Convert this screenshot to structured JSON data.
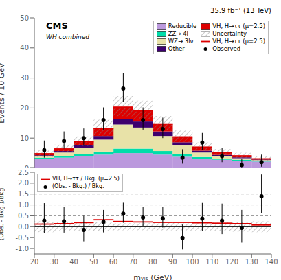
{
  "chart_data": [
    {
      "type": "bar",
      "stacked": true,
      "ylabel": "Events / 10 GeV",
      "annotations": [
        "CMS",
        "WH combined",
        "35.9 fb⁻¹ (13 TeV)"
      ],
      "x": [
        25,
        35,
        45,
        55,
        65,
        75,
        85,
        95,
        105,
        115,
        125,
        135
      ],
      "xlim": [
        20,
        140
      ],
      "xticks": [
        20,
        30,
        40,
        50,
        60,
        70,
        80,
        90,
        100,
        110,
        120,
        130,
        140
      ],
      "tick_labels": "y",
      "ylim": [
        0,
        50
      ],
      "yticks": [
        0,
        10,
        20,
        30,
        40,
        50
      ],
      "legend": "upper right",
      "series": [
        {
          "name": "Reducible",
          "type": "bar",
          "color": "#bb99dd",
          "values": [
            3.2,
            3.5,
            4.0,
            4.5,
            5.0,
            5.0,
            4.5,
            3.8,
            3.2,
            2.8,
            2.5,
            2.2
          ]
        },
        {
          "name": "ZZ→ 4l",
          "type": "bar",
          "color": "#00ddaa",
          "values": [
            0.3,
            0.5,
            0.8,
            1.0,
            1.5,
            1.5,
            1.2,
            0.8,
            0.5,
            0.4,
            0.3,
            0.2
          ]
        },
        {
          "name": "WZ→ 3lν",
          "type": "bar",
          "color": "#e8e2a8",
          "values": [
            0.5,
            1.2,
            2.0,
            4.0,
            8.0,
            7.0,
            5.0,
            3.0,
            1.5,
            0.8,
            0.5,
            0.3
          ]
        },
        {
          "name": "Other",
          "type": "bar",
          "color": "#3d006e",
          "values": [
            0.3,
            0.5,
            0.8,
            1.2,
            1.8,
            2.0,
            1.5,
            1.0,
            0.6,
            0.4,
            0.3,
            0.2
          ]
        },
        {
          "name": "VH, H→ττ (μ=2.5)",
          "type": "bar",
          "color": "#dd0000",
          "values": [
            0.5,
            0.7,
            1.2,
            2.5,
            4.0,
            3.5,
            2.5,
            1.8,
            1.2,
            0.8,
            0.5,
            0.2
          ]
        },
        {
          "name": "Uncertainty",
          "type": "band",
          "color": "#888888",
          "low": [
            3.744,
            5.248,
            7.392,
            10.824,
            17.255,
            16.15,
            12.495,
            8.736,
            5.74,
            4.264,
            3.28,
            2.418
          ],
          "high": [
            6.144,
            7.808,
            10.56,
            16.104,
            23.954,
            22.42,
            17.346,
            12.48,
            8.54,
            6.344,
            5.125,
            3.968
          ]
        },
        {
          "name": "VH, H→ττ (μ=2.5)",
          "type": "line",
          "line_style": "steps",
          "color": "#dd0000",
          "values": [
            4.8,
            6.4,
            8.8,
            13.2,
            20.3,
            19.0,
            14.7,
            10.4,
            7.0,
            5.2,
            4.1,
            3.1
          ]
        },
        {
          "name": "Observed",
          "type": "scatter",
          "marker": "circle",
          "color": "#000000",
          "values": [
            6.0,
            9.0,
            10.0,
            16.0,
            26.5,
            16.0,
            13.0,
            3.5,
            8.5,
            4.0,
            1.0,
            2.0
          ],
          "error_low": [
            2.5,
            2.5,
            2.5,
            3.2,
            4.5,
            3.2,
            3.0,
            2.0,
            2.5,
            2.0,
            1.2,
            1.5
          ],
          "error_high": [
            3.2,
            3.2,
            3.2,
            4.2,
            5.2,
            4.2,
            3.8,
            2.8,
            3.2,
            2.8,
            2.2,
            2.5
          ]
        }
      ]
    },
    {
      "type": "scatter",
      "xlabel": "mᵥᵢₛ (GeV)",
      "ylabel": "(Obs. - Bkg.)/Bkg.",
      "x": [
        25,
        35,
        45,
        55,
        65,
        75,
        85,
        95,
        105,
        115,
        125,
        135
      ],
      "xlim": [
        20,
        140
      ],
      "xticks": [
        20,
        30,
        40,
        50,
        60,
        70,
        80,
        90,
        100,
        110,
        120,
        130,
        140
      ],
      "ylim": [
        -1.25,
        2.5
      ],
      "yticks": [
        {
          "value": -1,
          "label": "-1.0"
        },
        -0.5,
        {
          "value": 0,
          "label": "0.0"
        },
        0.5,
        {
          "value": 1,
          "label": "1.0"
        },
        1.5,
        {
          "value": 2,
          "label": "2.0"
        },
        2.5
      ],
      "legend": "upper left",
      "reference_lines": [
        0.5,
        1.0,
        1.5
      ],
      "baseline": 0,
      "series": [
        {
          "type": "band",
          "color": "#888888",
          "low": [
            -0.25,
            -0.2,
            -0.18,
            -0.2,
            -0.165,
            -0.165,
            -0.165,
            -0.18,
            -0.2,
            -0.2,
            -0.225,
            -0.25
          ],
          "high": [
            0.25,
            0.2,
            0.18,
            0.2,
            0.165,
            0.165,
            0.165,
            0.18,
            0.2,
            0.2,
            0.225,
            0.25
          ]
        },
        {
          "name": "VH, H→ττ / Bkg.  (μ=2.5)",
          "type": "line",
          "line_style": "steps",
          "color": "#dd0000",
          "values": [
            0.12,
            0.14,
            0.19,
            0.32,
            0.24,
            0.22,
            0.2,
            0.2,
            0.18,
            0.16,
            0.14,
            0.08
          ]
        },
        {
          "name": "(Obs. - Bkg.) / Bkg.",
          "type": "scatter",
          "marker": "circle",
          "color": "#000000",
          "values": [
            0.28,
            0.25,
            -0.15,
            0.22,
            0.6,
            0.42,
            0.38,
            -0.52,
            0.37,
            0.28,
            -0.05,
            1.4
          ],
          "error_low": [
            0.58,
            0.52,
            0.52,
            0.48,
            0.42,
            0.38,
            0.42,
            0.52,
            0.58,
            0.62,
            0.68,
            0.78
          ],
          "error_high": [
            0.8,
            0.65,
            0.65,
            0.55,
            0.5,
            0.48,
            0.52,
            0.62,
            0.72,
            0.78,
            0.82,
            1.0
          ]
        }
      ]
    }
  ]
}
